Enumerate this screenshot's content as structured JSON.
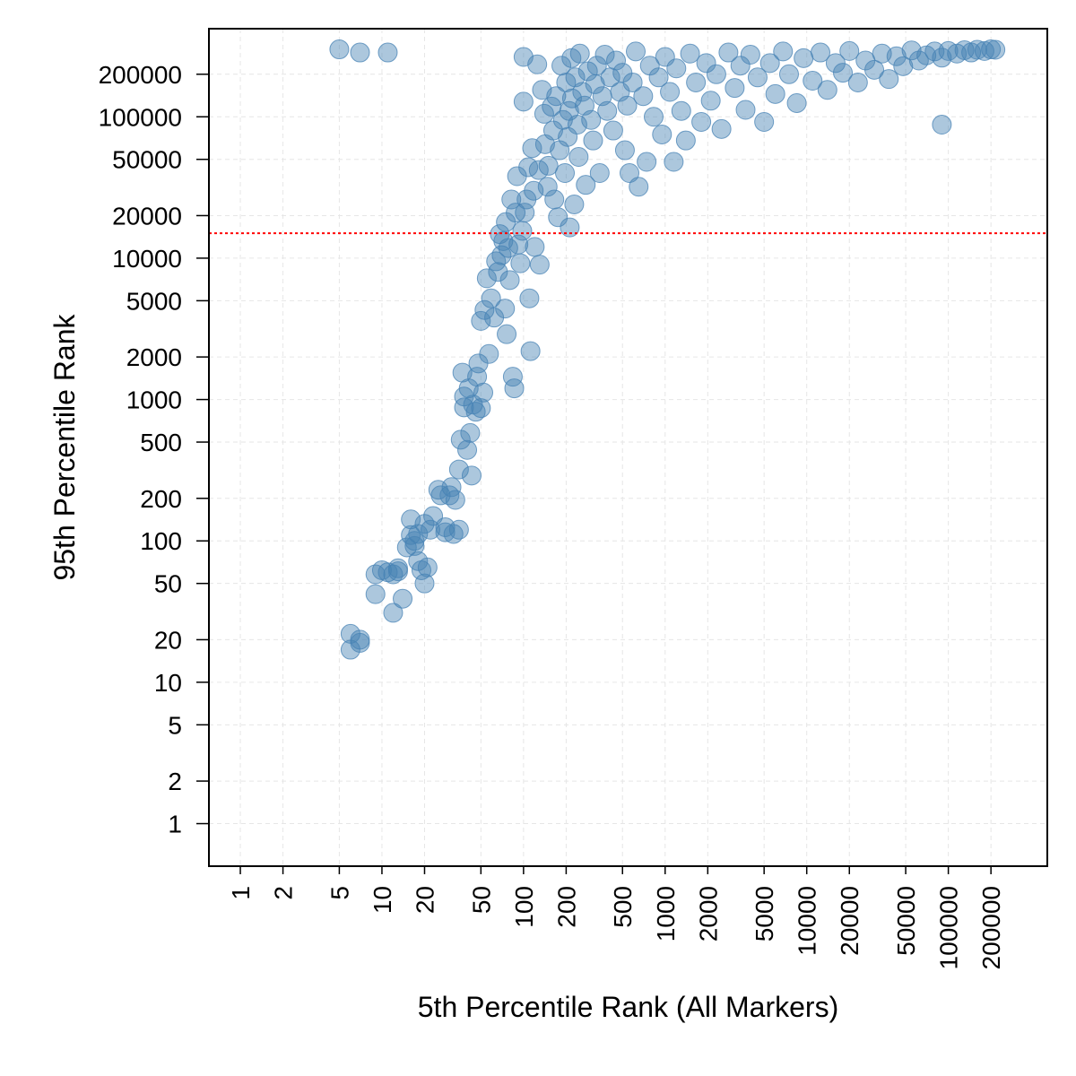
{
  "chart_data": {
    "type": "scatter",
    "title": "",
    "xlabel": "5th Percentile Rank (All Markers)",
    "ylabel": "95th Percentile Rank",
    "x_scale": "log",
    "y_scale": "log",
    "xlim": [
      0.6,
      500000
    ],
    "ylim": [
      0.5,
      420000
    ],
    "x_ticks": [
      1,
      2,
      5,
      10,
      20,
      50,
      100,
      200,
      500,
      1000,
      2000,
      5000,
      10000,
      20000,
      50000,
      100000,
      200000
    ],
    "y_ticks": [
      1,
      2,
      5,
      10,
      20,
      50,
      100,
      200,
      500,
      1000,
      2000,
      5000,
      10000,
      20000,
      50000,
      100000,
      200000
    ],
    "grid": true,
    "marker_color": "#4682B4",
    "marker_opacity": 0.45,
    "reference_line": {
      "orientation": "horizontal",
      "y": 15000,
      "color": "#ff0000",
      "style": "dotted"
    },
    "points": [
      [
        6,
        22
      ],
      [
        6,
        17
      ],
      [
        7,
        19
      ],
      [
        7,
        20
      ],
      [
        9,
        42
      ],
      [
        9,
        58
      ],
      [
        10,
        62
      ],
      [
        11,
        60
      ],
      [
        12,
        58
      ],
      [
        12,
        31
      ],
      [
        13,
        64
      ],
      [
        13,
        61
      ],
      [
        14,
        39
      ],
      [
        15,
        90
      ],
      [
        16,
        110
      ],
      [
        16,
        142
      ],
      [
        17,
        92
      ],
      [
        17,
        100
      ],
      [
        18,
        72
      ],
      [
        18,
        112
      ],
      [
        19,
        62
      ],
      [
        20,
        50
      ],
      [
        20,
        132
      ],
      [
        21,
        65
      ],
      [
        22,
        120
      ],
      [
        23,
        150
      ],
      [
        25,
        230
      ],
      [
        26,
        210
      ],
      [
        28,
        125
      ],
      [
        28,
        115
      ],
      [
        30,
        210
      ],
      [
        31,
        240
      ],
      [
        32,
        112
      ],
      [
        33,
        195
      ],
      [
        35,
        120
      ],
      [
        35,
        320
      ],
      [
        36,
        520
      ],
      [
        37,
        1550
      ],
      [
        38,
        880
      ],
      [
        38,
        1050
      ],
      [
        40,
        440
      ],
      [
        41,
        1200
      ],
      [
        42,
        580
      ],
      [
        43,
        290
      ],
      [
        44,
        920
      ],
      [
        46,
        820
      ],
      [
        47,
        1450
      ],
      [
        48,
        1800
      ],
      [
        50,
        870
      ],
      [
        50,
        3600
      ],
      [
        52,
        1120
      ],
      [
        53,
        4300
      ],
      [
        55,
        7200
      ],
      [
        57,
        2100
      ],
      [
        59,
        5200
      ],
      [
        62,
        3800
      ],
      [
        64,
        9500
      ],
      [
        66,
        8000
      ],
      [
        68,
        14800
      ],
      [
        70,
        10500
      ],
      [
        72,
        13200
      ],
      [
        74,
        4400
      ],
      [
        75,
        18000
      ],
      [
        76,
        2900
      ],
      [
        78,
        11800
      ],
      [
        80,
        7000
      ],
      [
        82,
        26000
      ],
      [
        84,
        1450
      ],
      [
        86,
        1200
      ],
      [
        88,
        21000
      ],
      [
        90,
        38000
      ],
      [
        92,
        12500
      ],
      [
        95,
        9200
      ],
      [
        98,
        15600
      ],
      [
        100,
        265000
      ],
      [
        100,
        128000
      ],
      [
        102,
        21000
      ],
      [
        105,
        26000
      ],
      [
        108,
        44000
      ],
      [
        110,
        5200
      ],
      [
        112,
        2200
      ],
      [
        115,
        60000
      ],
      [
        118,
        30000
      ],
      [
        120,
        12000
      ],
      [
        125,
        235000
      ],
      [
        128,
        42000
      ],
      [
        130,
        9000
      ],
      [
        135,
        155000
      ],
      [
        140,
        105000
      ],
      [
        142,
        64000
      ],
      [
        148,
        32000
      ],
      [
        150,
        45000
      ],
      [
        158,
        118000
      ],
      [
        162,
        80000
      ],
      [
        165,
        26000
      ],
      [
        170,
        140000
      ],
      [
        175,
        19500
      ],
      [
        180,
        58000
      ],
      [
        185,
        230000
      ],
      [
        190,
        95000
      ],
      [
        196,
        40000
      ],
      [
        200,
        175000
      ],
      [
        205,
        72000
      ],
      [
        210,
        110000
      ],
      [
        212,
        16500
      ],
      [
        218,
        260000
      ],
      [
        220,
        135000
      ],
      [
        228,
        24000
      ],
      [
        232,
        190000
      ],
      [
        240,
        88000
      ],
      [
        245,
        52000
      ],
      [
        250,
        280000
      ],
      [
        260,
        150000
      ],
      [
        270,
        120000
      ],
      [
        275,
        33000
      ],
      [
        285,
        210000
      ],
      [
        300,
        95000
      ],
      [
        310,
        68000
      ],
      [
        320,
        170000
      ],
      [
        330,
        230000
      ],
      [
        345,
        40000
      ],
      [
        360,
        140000
      ],
      [
        375,
        275000
      ],
      [
        390,
        110000
      ],
      [
        410,
        190000
      ],
      [
        430,
        80000
      ],
      [
        450,
        250000
      ],
      [
        480,
        150000
      ],
      [
        500,
        205000
      ],
      [
        520,
        58000
      ],
      [
        540,
        120000
      ],
      [
        560,
        40000
      ],
      [
        590,
        175000
      ],
      [
        620,
        290000
      ],
      [
        650,
        32000
      ],
      [
        700,
        140000
      ],
      [
        740,
        48000
      ],
      [
        780,
        230000
      ],
      [
        830,
        100000
      ],
      [
        900,
        190000
      ],
      [
        950,
        75000
      ],
      [
        1000,
        265000
      ],
      [
        1080,
        150000
      ],
      [
        1150,
        48000
      ],
      [
        1200,
        220000
      ],
      [
        1300,
        110000
      ],
      [
        1400,
        68000
      ],
      [
        1500,
        280000
      ],
      [
        1650,
        175000
      ],
      [
        1800,
        92000
      ],
      [
        1950,
        240000
      ],
      [
        2100,
        130000
      ],
      [
        2300,
        200000
      ],
      [
        2500,
        82000
      ],
      [
        2800,
        285000
      ],
      [
        3100,
        160000
      ],
      [
        3400,
        230000
      ],
      [
        3700,
        112000
      ],
      [
        4000,
        275000
      ],
      [
        4500,
        190000
      ],
      [
        5000,
        92000
      ],
      [
        5500,
        240000
      ],
      [
        6000,
        145000
      ],
      [
        6800,
        290000
      ],
      [
        7500,
        200000
      ],
      [
        8500,
        125000
      ],
      [
        9500,
        260000
      ],
      [
        11000,
        180000
      ],
      [
        12500,
        285000
      ],
      [
        14000,
        155000
      ],
      [
        16000,
        240000
      ],
      [
        18000,
        205000
      ],
      [
        20000,
        292000
      ],
      [
        23000,
        175000
      ],
      [
        26000,
        250000
      ],
      [
        30000,
        215000
      ],
      [
        34000,
        280000
      ],
      [
        38000,
        185000
      ],
      [
        43000,
        268000
      ],
      [
        48000,
        228000
      ],
      [
        55000,
        295000
      ],
      [
        62000,
        250000
      ],
      [
        70000,
        272000
      ],
      [
        80000,
        290000
      ],
      [
        90000,
        262000
      ],
      [
        100000,
        292000
      ],
      [
        115000,
        280000
      ],
      [
        130000,
        296000
      ],
      [
        145000,
        285000
      ],
      [
        160000,
        298000
      ],
      [
        180000,
        292000
      ],
      [
        200000,
        300000
      ],
      [
        215000,
        298000
      ],
      [
        5,
        300000
      ],
      [
        7,
        285000
      ],
      [
        11,
        285000
      ],
      [
        90000,
        88000
      ]
    ]
  }
}
